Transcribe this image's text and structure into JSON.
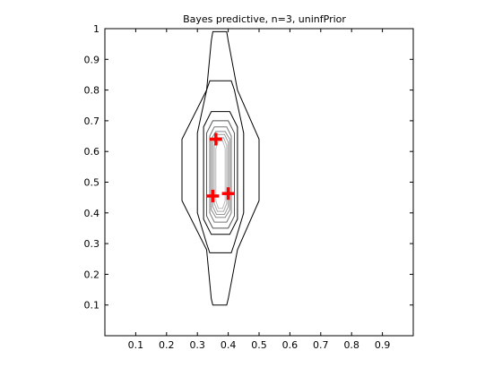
{
  "chart_data": {
    "type": "contour",
    "title": "Bayes predictive, n=3, uninfPrior",
    "xlabel": "",
    "ylabel": "",
    "xlim": [
      0,
      1
    ],
    "ylim": [
      0,
      1
    ],
    "grid": false,
    "x_ticks": [
      0.1,
      0.2,
      0.3,
      0.4,
      0.5,
      0.6,
      0.7,
      0.8,
      0.9
    ],
    "x_tick_labels": [
      "0.1",
      "0.2",
      "0.3",
      "0.4",
      "0.5",
      "0.6",
      "0.7",
      "0.8",
      "0.9"
    ],
    "y_ticks": [
      0.1,
      0.2,
      0.3,
      0.4,
      0.5,
      0.6,
      0.7,
      0.8,
      0.9,
      1
    ],
    "y_tick_labels": [
      "0.1",
      "0.2",
      "0.3",
      "0.4",
      "0.5",
      "0.6",
      "0.7",
      "0.8",
      "0.9",
      "1"
    ],
    "contours": [
      {
        "level": 1,
        "color": "#000000",
        "points": [
          [
            0.35,
            0.99
          ],
          [
            0.395,
            0.99
          ],
          [
            0.4,
            0.96
          ],
          [
            0.43,
            0.8
          ],
          [
            0.5,
            0.64
          ],
          [
            0.5,
            0.44
          ],
          [
            0.43,
            0.28
          ],
          [
            0.4,
            0.12
          ],
          [
            0.395,
            0.1
          ],
          [
            0.35,
            0.1
          ],
          [
            0.345,
            0.12
          ],
          [
            0.33,
            0.28
          ],
          [
            0.25,
            0.44
          ],
          [
            0.25,
            0.64
          ],
          [
            0.33,
            0.8
          ],
          [
            0.345,
            0.96
          ]
        ]
      },
      {
        "level": 2,
        "color": "#000000",
        "points": [
          [
            0.34,
            0.83
          ],
          [
            0.41,
            0.83
          ],
          [
            0.42,
            0.8
          ],
          [
            0.45,
            0.66
          ],
          [
            0.45,
            0.4
          ],
          [
            0.42,
            0.3
          ],
          [
            0.41,
            0.27
          ],
          [
            0.34,
            0.27
          ],
          [
            0.33,
            0.3
          ],
          [
            0.3,
            0.4
          ],
          [
            0.3,
            0.66
          ],
          [
            0.33,
            0.8
          ]
        ]
      },
      {
        "level": 3,
        "color": "#000000",
        "points": [
          [
            0.345,
            0.73
          ],
          [
            0.405,
            0.73
          ],
          [
            0.43,
            0.68
          ],
          [
            0.43,
            0.38
          ],
          [
            0.405,
            0.33
          ],
          [
            0.345,
            0.33
          ],
          [
            0.32,
            0.38
          ],
          [
            0.32,
            0.68
          ]
        ]
      },
      {
        "level": 4,
        "color": "#555555",
        "points": [
          [
            0.35,
            0.7
          ],
          [
            0.4,
            0.7
          ],
          [
            0.42,
            0.66
          ],
          [
            0.42,
            0.39
          ],
          [
            0.4,
            0.35
          ],
          [
            0.35,
            0.35
          ],
          [
            0.33,
            0.39
          ],
          [
            0.33,
            0.66
          ]
        ]
      },
      {
        "level": 5,
        "color": "#777777",
        "points": [
          [
            0.355,
            0.68
          ],
          [
            0.395,
            0.68
          ],
          [
            0.41,
            0.65
          ],
          [
            0.41,
            0.4
          ],
          [
            0.395,
            0.37
          ],
          [
            0.355,
            0.37
          ],
          [
            0.34,
            0.4
          ],
          [
            0.34,
            0.65
          ]
        ]
      },
      {
        "level": 6,
        "color": "#888888",
        "points": [
          [
            0.36,
            0.665
          ],
          [
            0.39,
            0.665
          ],
          [
            0.405,
            0.64
          ],
          [
            0.405,
            0.41
          ],
          [
            0.39,
            0.385
          ],
          [
            0.36,
            0.385
          ],
          [
            0.345,
            0.41
          ],
          [
            0.345,
            0.64
          ]
        ]
      },
      {
        "level": 7,
        "color": "#999999",
        "points": [
          [
            0.362,
            0.655
          ],
          [
            0.388,
            0.655
          ],
          [
            0.4,
            0.63
          ],
          [
            0.4,
            0.42
          ],
          [
            0.388,
            0.395
          ],
          [
            0.362,
            0.395
          ],
          [
            0.35,
            0.42
          ],
          [
            0.35,
            0.63
          ]
        ]
      },
      {
        "level": 8,
        "color": "#aaaaaa",
        "points": [
          [
            0.365,
            0.645
          ],
          [
            0.385,
            0.645
          ],
          [
            0.395,
            0.62
          ],
          [
            0.395,
            0.43
          ],
          [
            0.385,
            0.405
          ],
          [
            0.365,
            0.405
          ],
          [
            0.355,
            0.43
          ],
          [
            0.355,
            0.62
          ]
        ]
      },
      {
        "level": 9,
        "color": "#bbbbbb",
        "points": [
          [
            0.368,
            0.635
          ],
          [
            0.382,
            0.635
          ],
          [
            0.39,
            0.61
          ],
          [
            0.39,
            0.44
          ],
          [
            0.382,
            0.415
          ],
          [
            0.368,
            0.415
          ],
          [
            0.36,
            0.44
          ],
          [
            0.36,
            0.61
          ]
        ]
      }
    ],
    "markers": {
      "symbol": "plus",
      "color": "#ff0000",
      "points": [
        [
          0.36,
          0.64
        ],
        [
          0.35,
          0.455
        ],
        [
          0.4,
          0.463
        ]
      ]
    }
  }
}
